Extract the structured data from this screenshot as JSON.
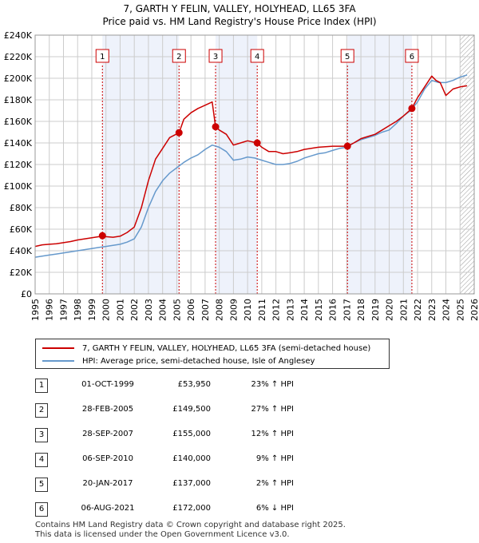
{
  "title_line1": "7, GARTH Y FELIN, VALLEY, HOLYHEAD, LL65 3FA",
  "title_line2": "Price paid vs. HM Land Registry's House Price Index (HPI)",
  "legend": {
    "property": "7, GARTH Y FELIN, VALLEY, HOLYHEAD, LL65 3FA (semi-detached house)",
    "hpi": "HPI: Average price, semi-detached house, Isle of Anglesey"
  },
  "colors": {
    "property": "#cc0000",
    "hpi": "#6699cc",
    "band": "#eef2fb",
    "grid": "#cccccc"
  },
  "sales": [
    {
      "num": "1",
      "date": "01-OCT-1999",
      "price": "£53,950",
      "hpi": "23% ↑ HPI"
    },
    {
      "num": "2",
      "date": "28-FEB-2005",
      "price": "£149,500",
      "hpi": "27% ↑ HPI"
    },
    {
      "num": "3",
      "date": "28-SEP-2007",
      "price": "£155,000",
      "hpi": "12% ↑ HPI"
    },
    {
      "num": "4",
      "date": "06-SEP-2010",
      "price": "£140,000",
      "hpi": "9% ↑ HPI"
    },
    {
      "num": "5",
      "date": "20-JAN-2017",
      "price": "£137,000",
      "hpi": "2% ↑ HPI"
    },
    {
      "num": "6",
      "date": "06-AUG-2021",
      "price": "£172,000",
      "hpi": "6% ↓ HPI"
    }
  ],
  "footer_line1": "Contains HM Land Registry data © Crown copyright and database right 2025.",
  "footer_line2": "This data is licensed under the Open Government Licence v3.0.",
  "chart_data": {
    "type": "line",
    "title": "7, GARTH Y FELIN, VALLEY, HOLYHEAD, LL65 3FA — Price paid vs. HM Land Registry's House Price Index (HPI)",
    "xlabel": "",
    "ylabel": "",
    "xlim": [
      1995,
      2026
    ],
    "ylim": [
      0,
      240000
    ],
    "x_ticks": [
      "1995",
      "1996",
      "1997",
      "1998",
      "1999",
      "2000",
      "2001",
      "2002",
      "2003",
      "2004",
      "2005",
      "2006",
      "2007",
      "2008",
      "2009",
      "2010",
      "2011",
      "2012",
      "2013",
      "2014",
      "2015",
      "2016",
      "2017",
      "2018",
      "2019",
      "2020",
      "2021",
      "2022",
      "2023",
      "2024",
      "2025",
      "2026"
    ],
    "y_ticks": [
      {
        "value": 0,
        "label": "£0"
      },
      {
        "value": 20000,
        "label": "£20K"
      },
      {
        "value": 40000,
        "label": "£40K"
      },
      {
        "value": 60000,
        "label": "£60K"
      },
      {
        "value": 80000,
        "label": "£80K"
      },
      {
        "value": 100000,
        "label": "£100K"
      },
      {
        "value": 120000,
        "label": "£120K"
      },
      {
        "value": 140000,
        "label": "£140K"
      },
      {
        "value": 160000,
        "label": "£160K"
      },
      {
        "value": 180000,
        "label": "£180K"
      },
      {
        "value": 200000,
        "label": "£200K"
      },
      {
        "value": 220000,
        "label": "£220K"
      },
      {
        "value": 240000,
        "label": "£240K"
      }
    ],
    "shaded_ranges": [
      [
        1999.75,
        2005.16
      ],
      [
        2007.74,
        2010.68
      ],
      [
        2017.05,
        2021.6
      ]
    ],
    "hatched_from": 2025.0,
    "sale_markers": [
      {
        "label": "1",
        "x": 1999.75,
        "y": 53950
      },
      {
        "label": "2",
        "x": 2005.16,
        "y": 149500
      },
      {
        "label": "3",
        "x": 2007.74,
        "y": 155000
      },
      {
        "label": "4",
        "x": 2010.68,
        "y": 140000
      },
      {
        "label": "5",
        "x": 2017.05,
        "y": 137000
      },
      {
        "label": "6",
        "x": 2021.6,
        "y": 172000
      }
    ],
    "series": [
      {
        "name": "7, GARTH Y FELIN, VALLEY, HOLYHEAD, LL65 3FA (semi-detached house)",
        "color": "#cc0000",
        "x": [
          1995,
          1995.5,
          1996,
          1996.5,
          1997,
          1997.5,
          1998,
          1998.5,
          1999,
          1999.5,
          1999.75,
          2000,
          2000.5,
          2001,
          2001.5,
          2002,
          2002.5,
          2003,
          2003.5,
          2004,
          2004.5,
          2005.16,
          2005.5,
          2006,
          2006.5,
          2007,
          2007.5,
          2007.74,
          2008,
          2008.5,
          2009,
          2009.5,
          2010,
          2010.68,
          2011,
          2011.5,
          2012,
          2012.5,
          2013,
          2013.5,
          2014,
          2014.5,
          2015,
          2015.5,
          2016,
          2016.5,
          2017.05,
          2017.5,
          2018,
          2018.5,
          2019,
          2019.5,
          2020,
          2020.5,
          2021,
          2021.6,
          2022,
          2022.5,
          2023,
          2023.3,
          2023.6,
          2024,
          2024.5,
          2025,
          2025.5
        ],
        "y": [
          44000,
          45500,
          46000,
          46500,
          47500,
          48500,
          50000,
          51000,
          52000,
          53000,
          53950,
          53000,
          52500,
          53500,
          57000,
          62000,
          80000,
          105000,
          125000,
          135000,
          145000,
          149500,
          162000,
          168000,
          172000,
          175000,
          178000,
          155000,
          152000,
          148000,
          138000,
          140000,
          142000,
          140000,
          136000,
          132000,
          132000,
          130000,
          131000,
          132000,
          134000,
          135000,
          136000,
          136500,
          137000,
          137000,
          137000,
          140000,
          144000,
          146000,
          148000,
          152000,
          156000,
          160000,
          165000,
          172000,
          182000,
          192000,
          202000,
          198000,
          196000,
          184000,
          190000,
          192000,
          193000
        ]
      },
      {
        "name": "HPI: Average price, semi-detached house, Isle of Anglesey",
        "color": "#6699cc",
        "x": [
          1995,
          1995.5,
          1996,
          1996.5,
          1997,
          1997.5,
          1998,
          1998.5,
          1999,
          1999.5,
          2000,
          2000.5,
          2001,
          2001.5,
          2002,
          2002.5,
          2003,
          2003.5,
          2004,
          2004.5,
          2005,
          2005.5,
          2006,
          2006.5,
          2007,
          2007.5,
          2008,
          2008.5,
          2009,
          2009.5,
          2010,
          2010.5,
          2011,
          2011.5,
          2012,
          2012.5,
          2013,
          2013.5,
          2014,
          2014.5,
          2015,
          2015.5,
          2016,
          2016.5,
          2017,
          2017.5,
          2018,
          2018.5,
          2019,
          2019.5,
          2020,
          2020.5,
          2021,
          2021.5,
          2022,
          2022.5,
          2023,
          2023.5,
          2024,
          2024.5,
          2025,
          2025.5
        ],
        "y": [
          34000,
          35000,
          36000,
          37000,
          38000,
          39000,
          40000,
          41000,
          42000,
          43000,
          44000,
          45000,
          46000,
          48000,
          51000,
          62000,
          80000,
          95000,
          105000,
          112000,
          117000,
          122000,
          126000,
          129000,
          134000,
          138000,
          136000,
          132000,
          124000,
          125000,
          127000,
          126000,
          124000,
          122000,
          120000,
          120000,
          121000,
          123000,
          126000,
          128000,
          130000,
          131000,
          133000,
          135000,
          136000,
          140000,
          143000,
          145000,
          147000,
          150000,
          152000,
          158000,
          165000,
          170000,
          178000,
          190000,
          198000,
          196000,
          196000,
          198000,
          201000,
          203000
        ]
      }
    ]
  }
}
